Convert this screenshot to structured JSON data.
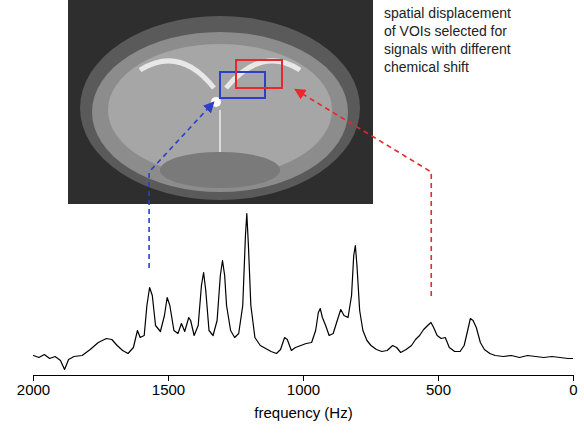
{
  "chart_data": {
    "type": "line",
    "annotation": "spatial displacement of VOIs selected for signals with different chemical shift",
    "xlabel": "frequency (Hz)",
    "xlim": [
      2000,
      0
    ],
    "xticks": [
      2000,
      1500,
      1000,
      500,
      0
    ],
    "ylim": [
      0,
      170
    ],
    "tick_labels": "x",
    "color": "#000000",
    "x": [
      2000,
      1980,
      1960,
      1940,
      1920,
      1900,
      1885,
      1870,
      1850,
      1820,
      1790,
      1760,
      1730,
      1710,
      1690,
      1670,
      1650,
      1630,
      1615,
      1605,
      1590,
      1580,
      1570,
      1560,
      1548,
      1530,
      1515,
      1505,
      1495,
      1480,
      1465,
      1452,
      1440,
      1425,
      1418,
      1405,
      1390,
      1378,
      1370,
      1362,
      1350,
      1335,
      1320,
      1308,
      1300,
      1292,
      1285,
      1270,
      1255,
      1240,
      1225,
      1215,
      1210,
      1204,
      1195,
      1180,
      1160,
      1140,
      1120,
      1100,
      1085,
      1070,
      1060,
      1045,
      1030,
      1010,
      990,
      970,
      955,
      945,
      938,
      930,
      918,
      905,
      890,
      875,
      862,
      850,
      835,
      822,
      814,
      808,
      802,
      792,
      780,
      765,
      750,
      730,
      710,
      690,
      670,
      655,
      640,
      620,
      600,
      585,
      570,
      555,
      540,
      528,
      518,
      505,
      490,
      475,
      460,
      440,
      420,
      405,
      392,
      382,
      372,
      360,
      345,
      330,
      310,
      290,
      260,
      230,
      200,
      170,
      140,
      110,
      80,
      50,
      20,
      0
    ],
    "values": [
      20,
      18,
      21,
      17,
      19,
      15,
      6,
      16,
      19,
      20,
      26,
      33,
      37,
      36,
      30,
      25,
      22,
      28,
      45,
      38,
      40,
      70,
      88,
      80,
      50,
      44,
      60,
      78,
      70,
      45,
      42,
      52,
      44,
      58,
      55,
      40,
      50,
      90,
      103,
      85,
      45,
      40,
      55,
      100,
      115,
      100,
      70,
      45,
      38,
      42,
      70,
      140,
      162,
      130,
      70,
      38,
      30,
      27,
      24,
      22,
      26,
      38,
      36,
      25,
      28,
      30,
      32,
      33,
      45,
      63,
      67,
      58,
      50,
      40,
      42,
      55,
      66,
      60,
      58,
      80,
      120,
      130,
      110,
      65,
      45,
      35,
      30,
      26,
      24,
      25,
      30,
      28,
      23,
      26,
      30,
      36,
      40,
      46,
      50,
      53,
      48,
      40,
      37,
      38,
      28,
      24,
      24,
      30,
      45,
      57,
      55,
      48,
      33,
      26,
      22,
      20,
      19,
      20,
      18,
      20,
      19,
      18,
      19,
      18,
      17,
      17
    ],
    "arrows": [
      {
        "x": 1570,
        "color": "#2c3fc8"
      },
      {
        "x": 525,
        "color": "#e8282a"
      }
    ]
  }
}
